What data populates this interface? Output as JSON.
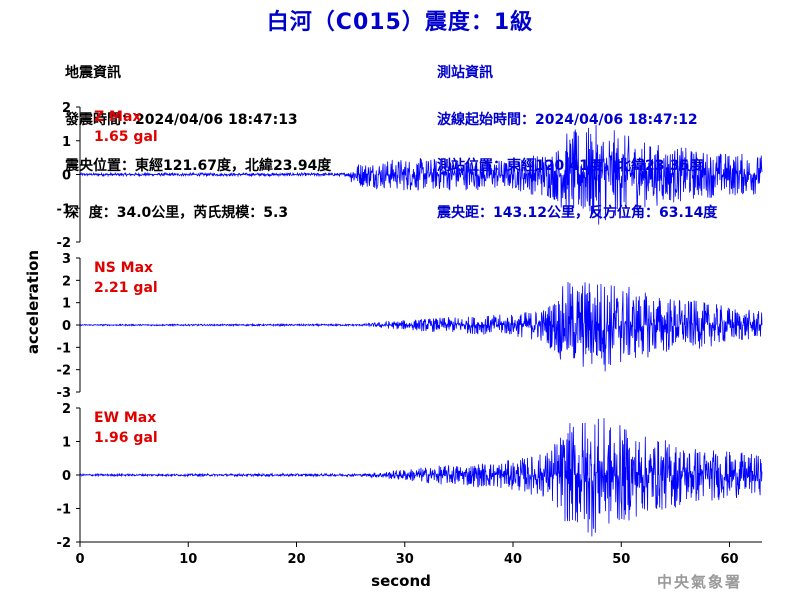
{
  "title": "白河（C015）震度：1級",
  "quake_info": {
    "heading": "地震資訊",
    "origin_time": "發震時間：2024/04/06 18:47:13",
    "epicenter": "震央位置：東經121.67度，北緯23.94度",
    "depth_magnitude": "深  度：34.0公里，芮氏規模：5.3"
  },
  "station_info": {
    "heading": "測站資訊",
    "onset_time": "波線起始時間：2024/04/06 18:47:12",
    "location": "測站位置：東經120.41度，北緯23.35度",
    "distance_azimuth": "震央距：143.12公里，反方位角：63.14度"
  },
  "footer": "中央氣象署",
  "colors": {
    "title": "#0000cc",
    "trace": "#0000ff",
    "peak_label": "#e00000",
    "axis": "#000000"
  },
  "chart_data": [
    {
      "type": "line",
      "component": "Z",
      "label_name": "Z Max",
      "label_value": "1.65 gal",
      "peak_gal": 1.65,
      "ylim": [
        -2,
        2
      ],
      "yticks": [
        -2,
        -1,
        0,
        1,
        2
      ],
      "ytick_labels": [
        "-2",
        "-1",
        "0",
        "1",
        "2"
      ],
      "envelope": [
        {
          "x": 0,
          "amp": 0.04
        },
        {
          "x": 24.8,
          "amp": 0.05
        },
        {
          "x": 25.2,
          "amp": 0.35
        },
        {
          "x": 30,
          "amp": 0.5
        },
        {
          "x": 40,
          "amp": 0.45
        },
        {
          "x": 44,
          "amp": 0.8
        },
        {
          "x": 45,
          "amp": 1.3
        },
        {
          "x": 48,
          "amp": 1.5
        },
        {
          "x": 52,
          "amp": 1.0
        },
        {
          "x": 58,
          "amp": 0.7
        },
        {
          "x": 63,
          "amp": 0.6
        }
      ]
    },
    {
      "type": "line",
      "component": "NS",
      "label_name": "NS Max",
      "label_value": "2.21 gal",
      "peak_gal": 2.21,
      "ylim": [
        -3,
        3
      ],
      "yticks": [
        -3,
        -2,
        -1,
        0,
        1,
        2,
        3
      ],
      "ytick_labels": [
        "-3",
        "-2",
        "-1",
        "0",
        "1",
        "2",
        "3"
      ],
      "envelope": [
        {
          "x": 0,
          "amp": 0.03
        },
        {
          "x": 26,
          "amp": 0.04
        },
        {
          "x": 28,
          "amp": 0.15
        },
        {
          "x": 32,
          "amp": 0.3
        },
        {
          "x": 40,
          "amp": 0.5
        },
        {
          "x": 43,
          "amp": 0.8
        },
        {
          "x": 45,
          "amp": 2.0
        },
        {
          "x": 48,
          "amp": 2.2
        },
        {
          "x": 52,
          "amp": 1.5
        },
        {
          "x": 58,
          "amp": 1.0
        },
        {
          "x": 63,
          "amp": 0.6
        }
      ]
    },
    {
      "type": "line",
      "component": "EW",
      "label_name": "EW Max",
      "label_value": "1.96 gal",
      "peak_gal": 1.96,
      "ylim": [
        -2,
        2
      ],
      "yticks": [
        -2,
        -1,
        0,
        1,
        2
      ],
      "ytick_labels": [
        "-2",
        "-1",
        "0",
        "1",
        "2"
      ],
      "envelope": [
        {
          "x": 0,
          "amp": 0.03
        },
        {
          "x": 26,
          "amp": 0.04
        },
        {
          "x": 28,
          "amp": 0.1
        },
        {
          "x": 32,
          "amp": 0.25
        },
        {
          "x": 40,
          "amp": 0.45
        },
        {
          "x": 43,
          "amp": 0.7
        },
        {
          "x": 45,
          "amp": 1.5
        },
        {
          "x": 47,
          "amp": 1.9
        },
        {
          "x": 52,
          "amp": 1.2
        },
        {
          "x": 58,
          "amp": 0.8
        },
        {
          "x": 63,
          "amp": 0.6
        }
      ]
    }
  ],
  "axes": {
    "xlabel": "second",
    "ylabel": "acceleration",
    "xlim": [
      0,
      63
    ],
    "xticks": [
      0,
      10,
      20,
      30,
      40,
      50,
      60
    ],
    "xtick_labels": [
      "0",
      "10",
      "20",
      "30",
      "40",
      "50",
      "60"
    ]
  }
}
